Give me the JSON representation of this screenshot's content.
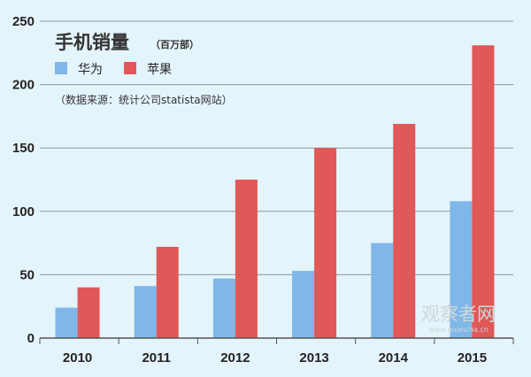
{
  "chart_data": {
    "type": "bar",
    "title": "手机销量",
    "unit": "（百万部）",
    "source": "（数据来源：统计公司statista网站）",
    "categories": [
      "2010",
      "2011",
      "2012",
      "2013",
      "2014",
      "2015"
    ],
    "series": [
      {
        "name": "华为",
        "color": "#7fb7e8",
        "values": [
          24,
          41,
          47,
          53,
          75,
          108
        ]
      },
      {
        "name": "苹果",
        "color": "#e05858",
        "values": [
          40,
          72,
          125,
          150,
          169,
          231
        ]
      }
    ],
    "ylim": [
      0,
      250
    ],
    "yticks": [
      0,
      50,
      100,
      150,
      200,
      250
    ],
    "grid": true,
    "legend": "top-left"
  },
  "watermark": {
    "text": "观察者网",
    "subtext": "www.guancha.cn"
  }
}
